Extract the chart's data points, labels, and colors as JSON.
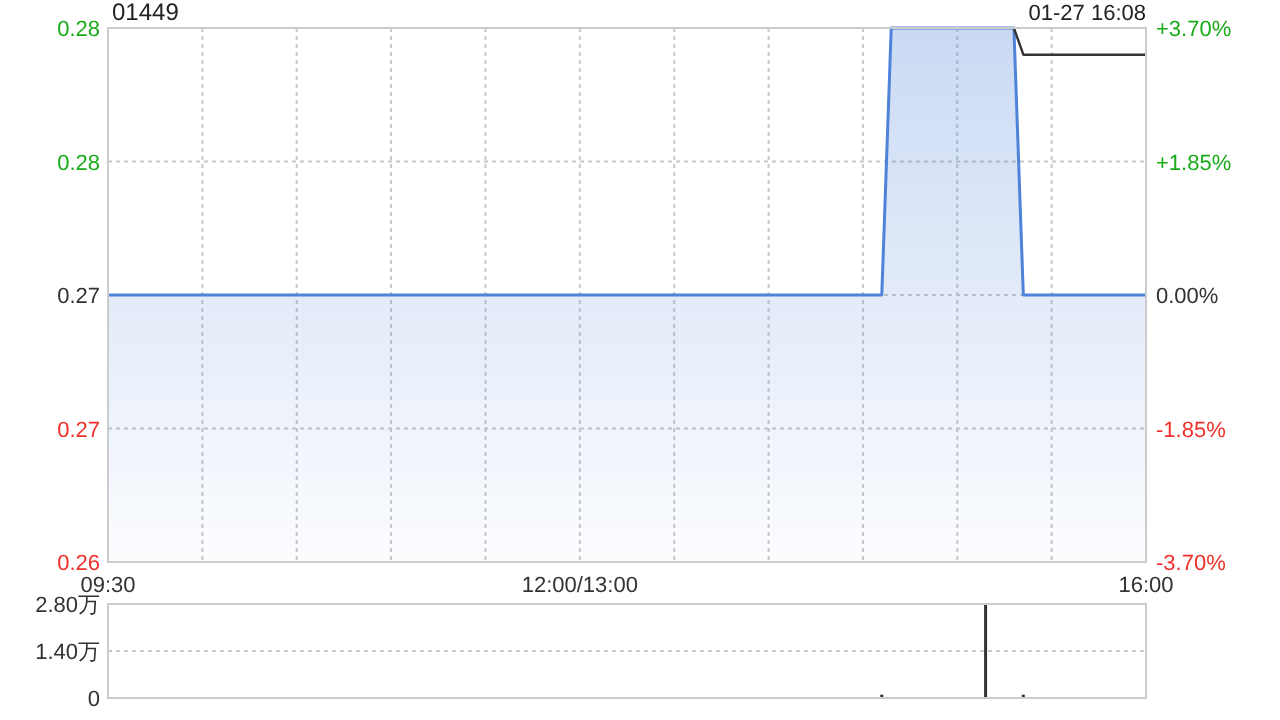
{
  "chart_data": [
    {
      "type": "line",
      "title": "01449",
      "annotations": [
        "01-27 16:08"
      ],
      "categories": [
        "09:30",
        null,
        null,
        null,
        null,
        null,
        null,
        null,
        null,
        null,
        null,
        null,
        null,
        null,
        null,
        null,
        null,
        null,
        null,
        null,
        null,
        null,
        null,
        null,
        null,
        null,
        null,
        null,
        null,
        null,
        null,
        null,
        null,
        null,
        null,
        null,
        null,
        null,
        null,
        null,
        null,
        null,
        null,
        null,
        null,
        null,
        null,
        null,
        null,
        null,
        "12:00/13:00",
        null,
        null,
        null,
        null,
        null,
        null,
        null,
        null,
        null,
        null,
        null,
        null,
        null,
        null,
        null,
        null,
        null,
        null,
        null,
        null,
        null,
        null,
        null,
        null,
        null,
        null,
        null,
        null,
        null,
        null,
        null,
        null,
        null,
        null,
        null,
        null,
        null,
        null,
        null,
        null,
        null,
        null,
        null,
        null,
        null,
        null,
        null,
        null,
        null,
        null,
        null,
        null,
        null,
        null,
        null,
        null,
        null,
        null,
        null,
        "16:00"
      ],
      "series": [
        {
          "type": "area",
          "color": "#4f82d9",
          "values": [
            0.27,
            0.27,
            0.27,
            0.27,
            0.27,
            0.27,
            0.27,
            0.27,
            0.27,
            0.27,
            0.27,
            0.27,
            0.27,
            0.27,
            0.27,
            0.27,
            0.27,
            0.27,
            0.27,
            0.27,
            0.27,
            0.27,
            0.27,
            0.27,
            0.27,
            0.27,
            0.27,
            0.27,
            0.27,
            0.27,
            0.27,
            0.27,
            0.27,
            0.27,
            0.27,
            0.27,
            0.27,
            0.27,
            0.27,
            0.27,
            0.27,
            0.27,
            0.27,
            0.27,
            0.27,
            0.27,
            0.27,
            0.27,
            0.27,
            0.27,
            0.27,
            0.27,
            0.27,
            0.27,
            0.27,
            0.27,
            0.27,
            0.27,
            0.27,
            0.27,
            0.27,
            0.27,
            0.27,
            0.27,
            0.27,
            0.27,
            0.27,
            0.27,
            0.27,
            0.27,
            0.27,
            0.27,
            0.27,
            0.27,
            0.27,
            0.27,
            0.27,
            0.27,
            0.27,
            0.27,
            0.27,
            0.27,
            0.27,
            0.28,
            0.28,
            0.28,
            0.28,
            0.28,
            0.28,
            0.28,
            0.28,
            0.28,
            0.28,
            0.28,
            0.28,
            0.28,
            0.28,
            0.27,
            0.27,
            0.27,
            0.27,
            0.27,
            0.27,
            0.27,
            0.27,
            0.27,
            0.27,
            0.27,
            0.27,
            0.27,
            0.27
          ]
        },
        {
          "color": "#333333",
          "values": [
            null,
            null,
            null,
            null,
            null,
            null,
            null,
            null,
            null,
            null,
            null,
            null,
            null,
            null,
            null,
            null,
            null,
            null,
            null,
            null,
            null,
            null,
            null,
            null,
            null,
            null,
            null,
            null,
            null,
            null,
            null,
            null,
            null,
            null,
            null,
            null,
            null,
            null,
            null,
            null,
            null,
            null,
            null,
            null,
            null,
            null,
            null,
            null,
            null,
            null,
            null,
            null,
            null,
            null,
            null,
            null,
            null,
            null,
            null,
            null,
            null,
            null,
            null,
            null,
            null,
            null,
            null,
            null,
            null,
            null,
            null,
            null,
            null,
            null,
            null,
            null,
            null,
            null,
            null,
            null,
            null,
            null,
            null,
            null,
            null,
            null,
            null,
            null,
            null,
            null,
            null,
            null,
            null,
            null,
            null,
            null,
            0.28,
            0.279,
            0.279,
            0.279,
            0.279,
            0.279,
            0.279,
            0.279,
            0.279,
            0.279,
            0.279,
            0.279,
            0.279,
            0.279,
            0.279
          ]
        }
      ],
      "ylim": [
        0.26,
        0.28
      ],
      "yticks": [
        {
          "value": 0.26,
          "label": "0.26"
        },
        {
          "value": 0.265,
          "label": "0.27"
        },
        {
          "value": 0.27,
          "label": "0.27"
        },
        {
          "value": 0.275,
          "label": "0.28"
        },
        {
          "value": 0.28,
          "label": "0.28"
        }
      ],
      "y2lim": [
        -3.7,
        3.7
      ],
      "y2ticks": [
        {
          "value": 3.7,
          "label": "+3.70%"
        },
        {
          "value": 1.85,
          "label": "+1.85%"
        },
        {
          "value": 0,
          "label": "0.00%"
        },
        {
          "value": -1.85,
          "label": "-1.85%"
        },
        {
          "value": -3.7,
          "label": "-3.70%"
        }
      ],
      "grid": true
    },
    {
      "type": "bar",
      "color": "#333333",
      "categories": [
        null,
        null,
        null,
        null,
        null,
        null,
        null,
        null,
        null,
        null,
        null,
        null,
        null,
        null,
        null,
        null,
        null,
        null,
        null,
        null,
        null,
        null,
        null,
        null,
        null,
        null,
        null,
        null,
        null,
        null,
        null,
        null,
        null,
        null,
        null,
        null,
        null,
        null,
        null,
        null,
        null,
        null,
        null,
        null,
        null,
        null,
        null,
        null,
        null,
        null,
        null,
        null,
        null,
        null,
        null,
        null,
        null,
        null,
        null,
        null,
        null,
        null,
        null,
        null,
        null,
        null,
        null,
        null,
        null,
        null,
        null,
        null,
        null,
        null,
        null,
        null,
        null,
        null,
        null,
        null,
        null,
        null,
        null,
        null,
        null,
        null,
        null,
        null,
        null,
        null,
        null,
        null,
        null,
        null,
        null,
        null,
        null,
        null,
        null,
        null,
        null,
        null,
        null,
        null,
        null,
        null,
        null,
        null,
        null,
        null,
        null
      ],
      "values": [
        null,
        null,
        null,
        null,
        null,
        null,
        null,
        null,
        null,
        null,
        null,
        null,
        null,
        null,
        null,
        null,
        null,
        null,
        null,
        null,
        null,
        null,
        null,
        null,
        null,
        null,
        null,
        null,
        null,
        null,
        null,
        null,
        null,
        null,
        null,
        null,
        null,
        null,
        null,
        null,
        null,
        null,
        null,
        null,
        null,
        null,
        null,
        null,
        null,
        null,
        null,
        null,
        null,
        null,
        null,
        null,
        null,
        null,
        null,
        null,
        null,
        null,
        null,
        null,
        null,
        null,
        null,
        null,
        null,
        null,
        null,
        null,
        null,
        null,
        null,
        null,
        null,
        null,
        null,
        null,
        null,
        null,
        0.1,
        null,
        null,
        null,
        null,
        null,
        null,
        null,
        null,
        null,
        null,
        2.8,
        null,
        null,
        null,
        0.1,
        null,
        null,
        null,
        null,
        null,
        null,
        null,
        null,
        null,
        null,
        null,
        null,
        null
      ],
      "ylim": [
        0,
        2.8
      ],
      "yticks": [
        0,
        {
          "value": 1.4,
          "label": "1.40万"
        },
        {
          "value": 2.8,
          "label": "2.80万"
        }
      ],
      "tick_labels": "y",
      "grid": "y"
    }
  ]
}
